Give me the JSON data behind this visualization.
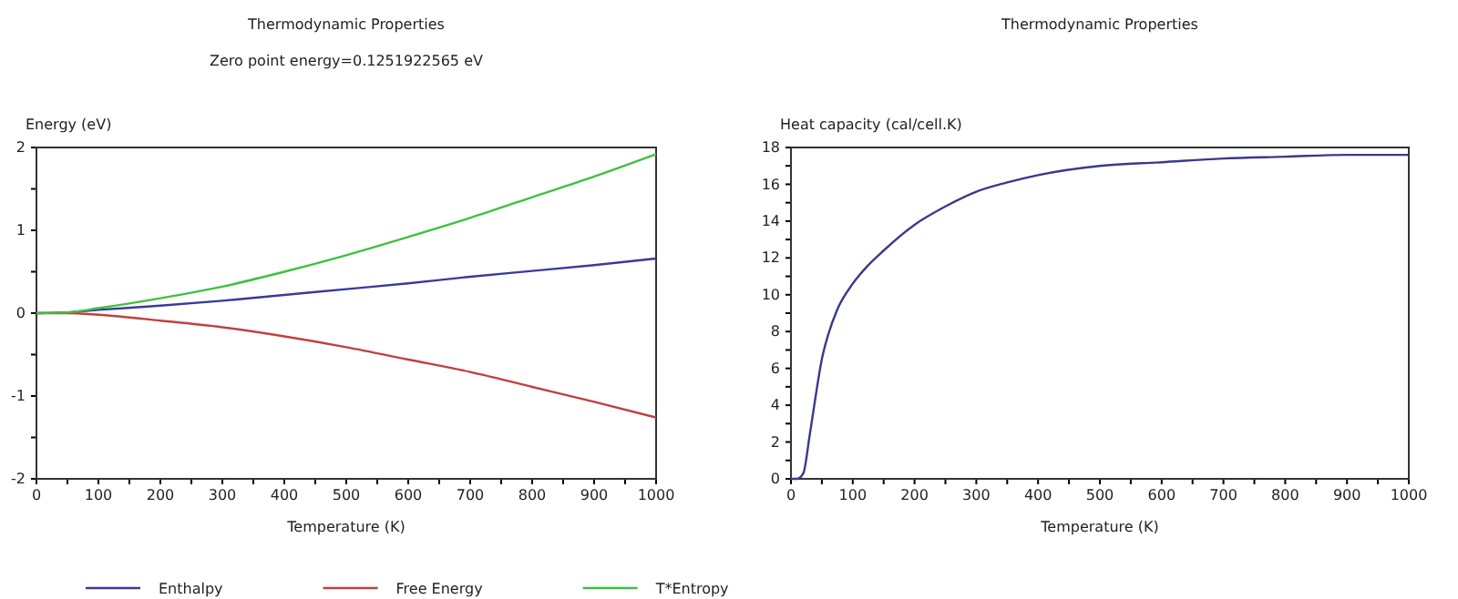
{
  "chart_data": [
    {
      "type": "line",
      "title": "Thermodynamic Properties",
      "subtitle": "Zero point energy=0.1251922565 eV",
      "xlabel": "Temperature (K)",
      "ylabel": "Energy  (eV)",
      "legend": "bottom",
      "grid": false,
      "xlim": [
        0,
        1000
      ],
      "ylim": [
        -2,
        2
      ],
      "xticks": [
        0,
        {
          "value": 50,
          "label": null
        },
        100,
        {
          "value": 150,
          "label": null
        },
        200,
        {
          "value": 250,
          "label": null
        },
        300,
        {
          "value": 350,
          "label": null
        },
        400,
        {
          "value": 450,
          "label": null
        },
        500,
        {
          "value": 550,
          "label": null
        },
        600,
        {
          "value": 650,
          "label": null
        },
        700,
        {
          "value": 750,
          "label": null
        },
        800,
        {
          "value": 850,
          "label": null
        },
        900,
        {
          "value": 950,
          "label": null
        },
        1000
      ],
      "yticks": [
        -2,
        {
          "value": -1.5,
          "label": null
        },
        -1,
        {
          "value": -0.5,
          "label": null
        },
        0,
        {
          "value": 0.5,
          "label": null
        },
        1,
        {
          "value": 1.5,
          "label": null
        },
        2
      ],
      "x": [
        0,
        50,
        100,
        200,
        300,
        400,
        500,
        600,
        700,
        800,
        900,
        1000
      ],
      "series": [
        {
          "name": "Enthalpy",
          "color": "#3a3a9a",
          "values": [
            0,
            0.01,
            0.04,
            0.09,
            0.15,
            0.22,
            0.29,
            0.36,
            0.44,
            0.51,
            0.58,
            0.66
          ]
        },
        {
          "name": "Free Energy",
          "color": "#c04040",
          "values": [
            0,
            0,
            -0.02,
            -0.09,
            -0.17,
            -0.28,
            -0.41,
            -0.56,
            -0.71,
            -0.89,
            -1.07,
            -1.26
          ]
        },
        {
          "name": "T*Entropy",
          "color": "#40c040",
          "values": [
            0,
            0.01,
            0.06,
            0.18,
            0.32,
            0.5,
            0.7,
            0.92,
            1.15,
            1.4,
            1.65,
            1.92
          ]
        }
      ]
    },
    {
      "type": "line",
      "title": "Thermodynamic Properties",
      "xlabel": "Temperature (K)",
      "ylabel": "Heat capacity (cal/cell.K)",
      "grid": false,
      "xlim": [
        0,
        1000
      ],
      "ylim": [
        0,
        18
      ],
      "xticks": [
        0,
        {
          "value": 50,
          "label": null
        },
        100,
        {
          "value": 150,
          "label": null
        },
        200,
        {
          "value": 250,
          "label": null
        },
        300,
        {
          "value": 350,
          "label": null
        },
        400,
        {
          "value": 450,
          "label": null
        },
        500,
        {
          "value": 550,
          "label": null
        },
        600,
        {
          "value": 650,
          "label": null
        },
        700,
        {
          "value": 750,
          "label": null
        },
        800,
        {
          "value": 850,
          "label": null
        },
        900,
        {
          "value": 950,
          "label": null
        },
        1000
      ],
      "yticks": [
        0,
        {
          "value": 1,
          "label": null
        },
        2,
        {
          "value": 3,
          "label": null
        },
        4,
        {
          "value": 5,
          "label": null
        },
        6,
        {
          "value": 7,
          "label": null
        },
        8,
        {
          "value": 9,
          "label": null
        },
        10,
        {
          "value": 11,
          "label": null
        },
        12,
        {
          "value": 13,
          "label": null
        },
        14,
        {
          "value": 15,
          "label": null
        },
        16,
        {
          "value": 17,
          "label": null
        },
        18
      ],
      "x": [
        0,
        10,
        20,
        30,
        40,
        50,
        60,
        75,
        100,
        125,
        150,
        200,
        250,
        300,
        350,
        400,
        500,
        600,
        700,
        800,
        900,
        1000
      ],
      "series": [
        {
          "color": "#3a3a8a",
          "values": [
            0,
            0,
            0.3,
            2.3,
            4.5,
            6.5,
            7.8,
            9.2,
            10.6,
            11.6,
            12.4,
            13.8,
            14.8,
            15.6,
            16.1,
            16.5,
            17,
            17.2,
            17.4,
            17.5,
            17.6,
            17.6
          ]
        }
      ]
    }
  ]
}
